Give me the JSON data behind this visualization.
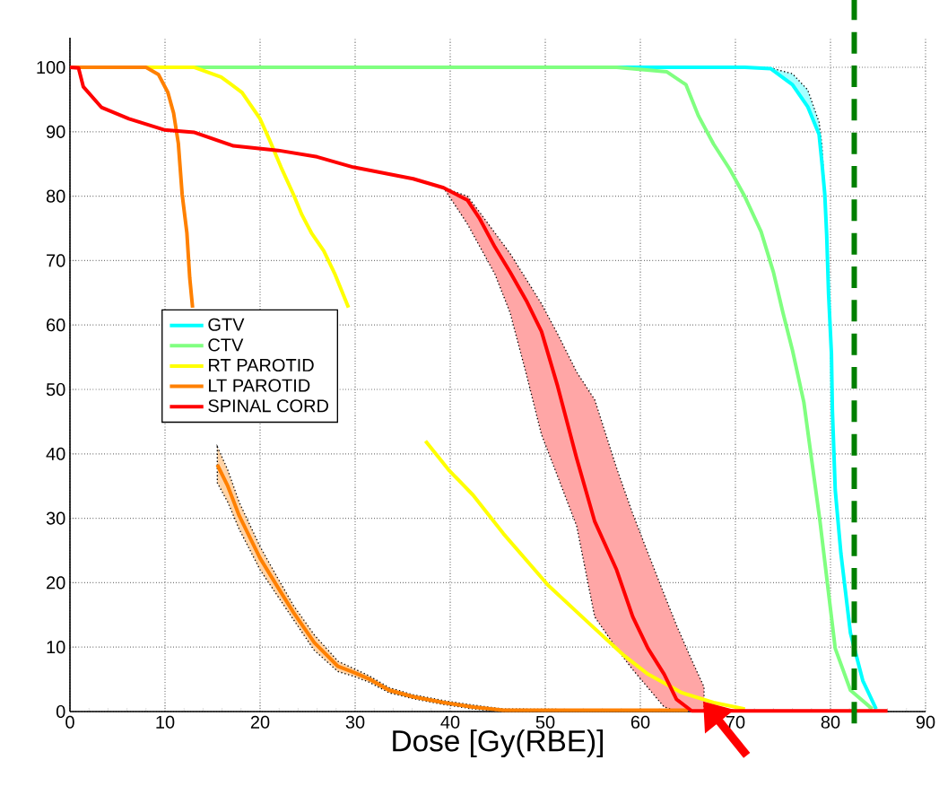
{
  "chart_data": {
    "type": "line",
    "xlabel": "Dose [Gy(RBE)]",
    "xlim": [
      0,
      90
    ],
    "ylim": [
      0,
      104.6
    ],
    "xticks": [
      0,
      10,
      20,
      30,
      40,
      50,
      60,
      70,
      80,
      90
    ],
    "yticks": [
      0,
      10,
      20,
      30,
      40,
      50,
      60,
      70,
      80,
      90,
      100
    ],
    "grid": true,
    "legend": "left",
    "line_style": "solid",
    "ref_lines": [
      {
        "axis": "x",
        "value": 82.5,
        "color": "#007f00",
        "line_style": "dashed"
      }
    ],
    "series": [
      {
        "name": "GTV",
        "color": "#00ffff",
        "x": [
          0,
          71,
          73.7,
          76,
          77.6,
          78.8,
          79.1,
          79.4,
          79.6,
          79.8,
          80.1,
          80.2,
          80.5,
          81.1,
          82.1,
          83.4,
          84.8
        ],
        "values": [
          100,
          100,
          99.8,
          97.3,
          93.9,
          89.6,
          85.2,
          80.3,
          74,
          64.8,
          55.6,
          46.8,
          34.4,
          24.5,
          12.2,
          4.8,
          0.4
        ],
        "lower": [
          null,
          100,
          99.8,
          97.3,
          93.9,
          89.6,
          85.2,
          80.3,
          null,
          null,
          null,
          null,
          null,
          null,
          null,
          null,
          null
        ],
        "upper": [
          null,
          100,
          99.9,
          99,
          96.5,
          91.5,
          88,
          80.3,
          null,
          null,
          null,
          null,
          null,
          null,
          null,
          null,
          null
        ]
      },
      {
        "name": "CTV",
        "color": "#80ff80",
        "x": [
          0,
          57.5,
          62.8,
          64.8,
          66.1,
          67.7,
          69.4,
          71,
          72.7,
          74,
          75,
          76,
          77.2,
          78.9,
          79.7,
          80.5,
          82.1,
          84.4
        ],
        "values": [
          100,
          100,
          99.3,
          97.3,
          92.5,
          88.1,
          84.2,
          79.9,
          74.5,
          68.2,
          61.9,
          56.1,
          48,
          29.5,
          19.6,
          9.8,
          3.3,
          0.4
        ]
      },
      {
        "name": "RT PAROTID",
        "color": "#ffff00",
        "x": [
          0,
          8,
          13.1,
          15.9,
          18.1,
          20,
          21,
          22.2,
          23.5,
          24.4,
          25.4,
          26.7,
          27.9,
          29.3,
          33,
          37.4,
          39.9,
          42.4,
          45.6,
          50.3,
          54.6,
          58.2,
          60.8,
          64.4,
          67.7,
          71
        ],
        "values": [
          100,
          100,
          100,
          98.5,
          96.1,
          92,
          88.7,
          84.5,
          80.3,
          77.1,
          74.3,
          71.5,
          67.8,
          62.7,
          null,
          42,
          37.4,
          33.6,
          27.6,
          19.6,
          13.7,
          8.8,
          5.8,
          2.9,
          1.4,
          0.4
        ]
      },
      {
        "name": "LT PAROTID",
        "color": "#ff8000",
        "x": [
          0,
          8,
          9.3,
          10.3,
          10.9,
          11.4,
          11.8,
          12.3,
          12.6,
          12.9,
          14.2,
          15.5,
          16.6,
          17.8,
          20,
          21.9,
          23.5,
          25.7,
          28.2,
          29.8,
          31.4,
          33.6,
          36.1,
          39.3,
          42.4,
          45.6,
          65
        ],
        "values": [
          100,
          100,
          98.9,
          96.1,
          92.9,
          88.2,
          80.3,
          74.3,
          67.3,
          62.7,
          null,
          38.3,
          35,
          30.4,
          23.8,
          19.2,
          15.4,
          10.7,
          7,
          6.1,
          5.1,
          3.3,
          2.3,
          1.4,
          0.7,
          0.2,
          0.2
        ],
        "lower": [
          null,
          null,
          null,
          null,
          null,
          null,
          null,
          null,
          null,
          null,
          null,
          35.5,
          32.5,
          28.3,
          22,
          17.8,
          14.3,
          9.5,
          6.2,
          5.5,
          4.6,
          2.9,
          2,
          1.1,
          0.4,
          0,
          0.2
        ],
        "upper": [
          null,
          null,
          null,
          null,
          null,
          null,
          null,
          null,
          null,
          null,
          null,
          41.1,
          37.5,
          32.5,
          25.6,
          20.6,
          16.5,
          11.9,
          7.8,
          6.7,
          5.6,
          3.7,
          2.6,
          1.7,
          1,
          0.4,
          0.2
        ]
      },
      {
        "name": "SPINAL CORD",
        "color": "#ff0000",
        "x": [
          0,
          0.9,
          1.4,
          3.3,
          6.2,
          9.9,
          13.1,
          17.2,
          21.9,
          26,
          29.8,
          36.1,
          39.3,
          41.8,
          43.1,
          44.7,
          46.3,
          48,
          49.6,
          51.3,
          53.3,
          55.2,
          57.5,
          59.2,
          60.8,
          62.5,
          63.8,
          65.4,
          66.7,
          86
        ],
        "values": [
          100,
          99.9,
          97,
          93.8,
          92,
          90.3,
          89.9,
          87.8,
          87.1,
          86.1,
          84.5,
          82.7,
          81.3,
          79.4,
          76.5,
          72.1,
          68.2,
          63.8,
          59,
          50.5,
          39.3,
          29.5,
          22,
          14.7,
          9.8,
          5.8,
          1.9,
          0.1,
          0.1,
          0.1
        ],
        "lower": [
          null,
          null,
          null,
          null,
          null,
          null,
          null,
          null,
          null,
          null,
          null,
          null,
          81.3,
          75.7,
          72.2,
          67.9,
          61.9,
          52.4,
          43,
          36.5,
          28.8,
          14.7,
          9.8,
          6.5,
          3.7,
          0.7,
          0.1,
          0.2,
          0.1,
          null
        ],
        "upper": [
          null,
          null,
          null,
          null,
          null,
          null,
          null,
          null,
          null,
          null,
          null,
          null,
          81.3,
          80,
          77.5,
          74.3,
          71.1,
          67.1,
          63.3,
          58.6,
          52.7,
          48.4,
          37.8,
          30.7,
          24.6,
          18.2,
          13.4,
          8,
          3.8,
          null
        ]
      }
    ]
  }
}
